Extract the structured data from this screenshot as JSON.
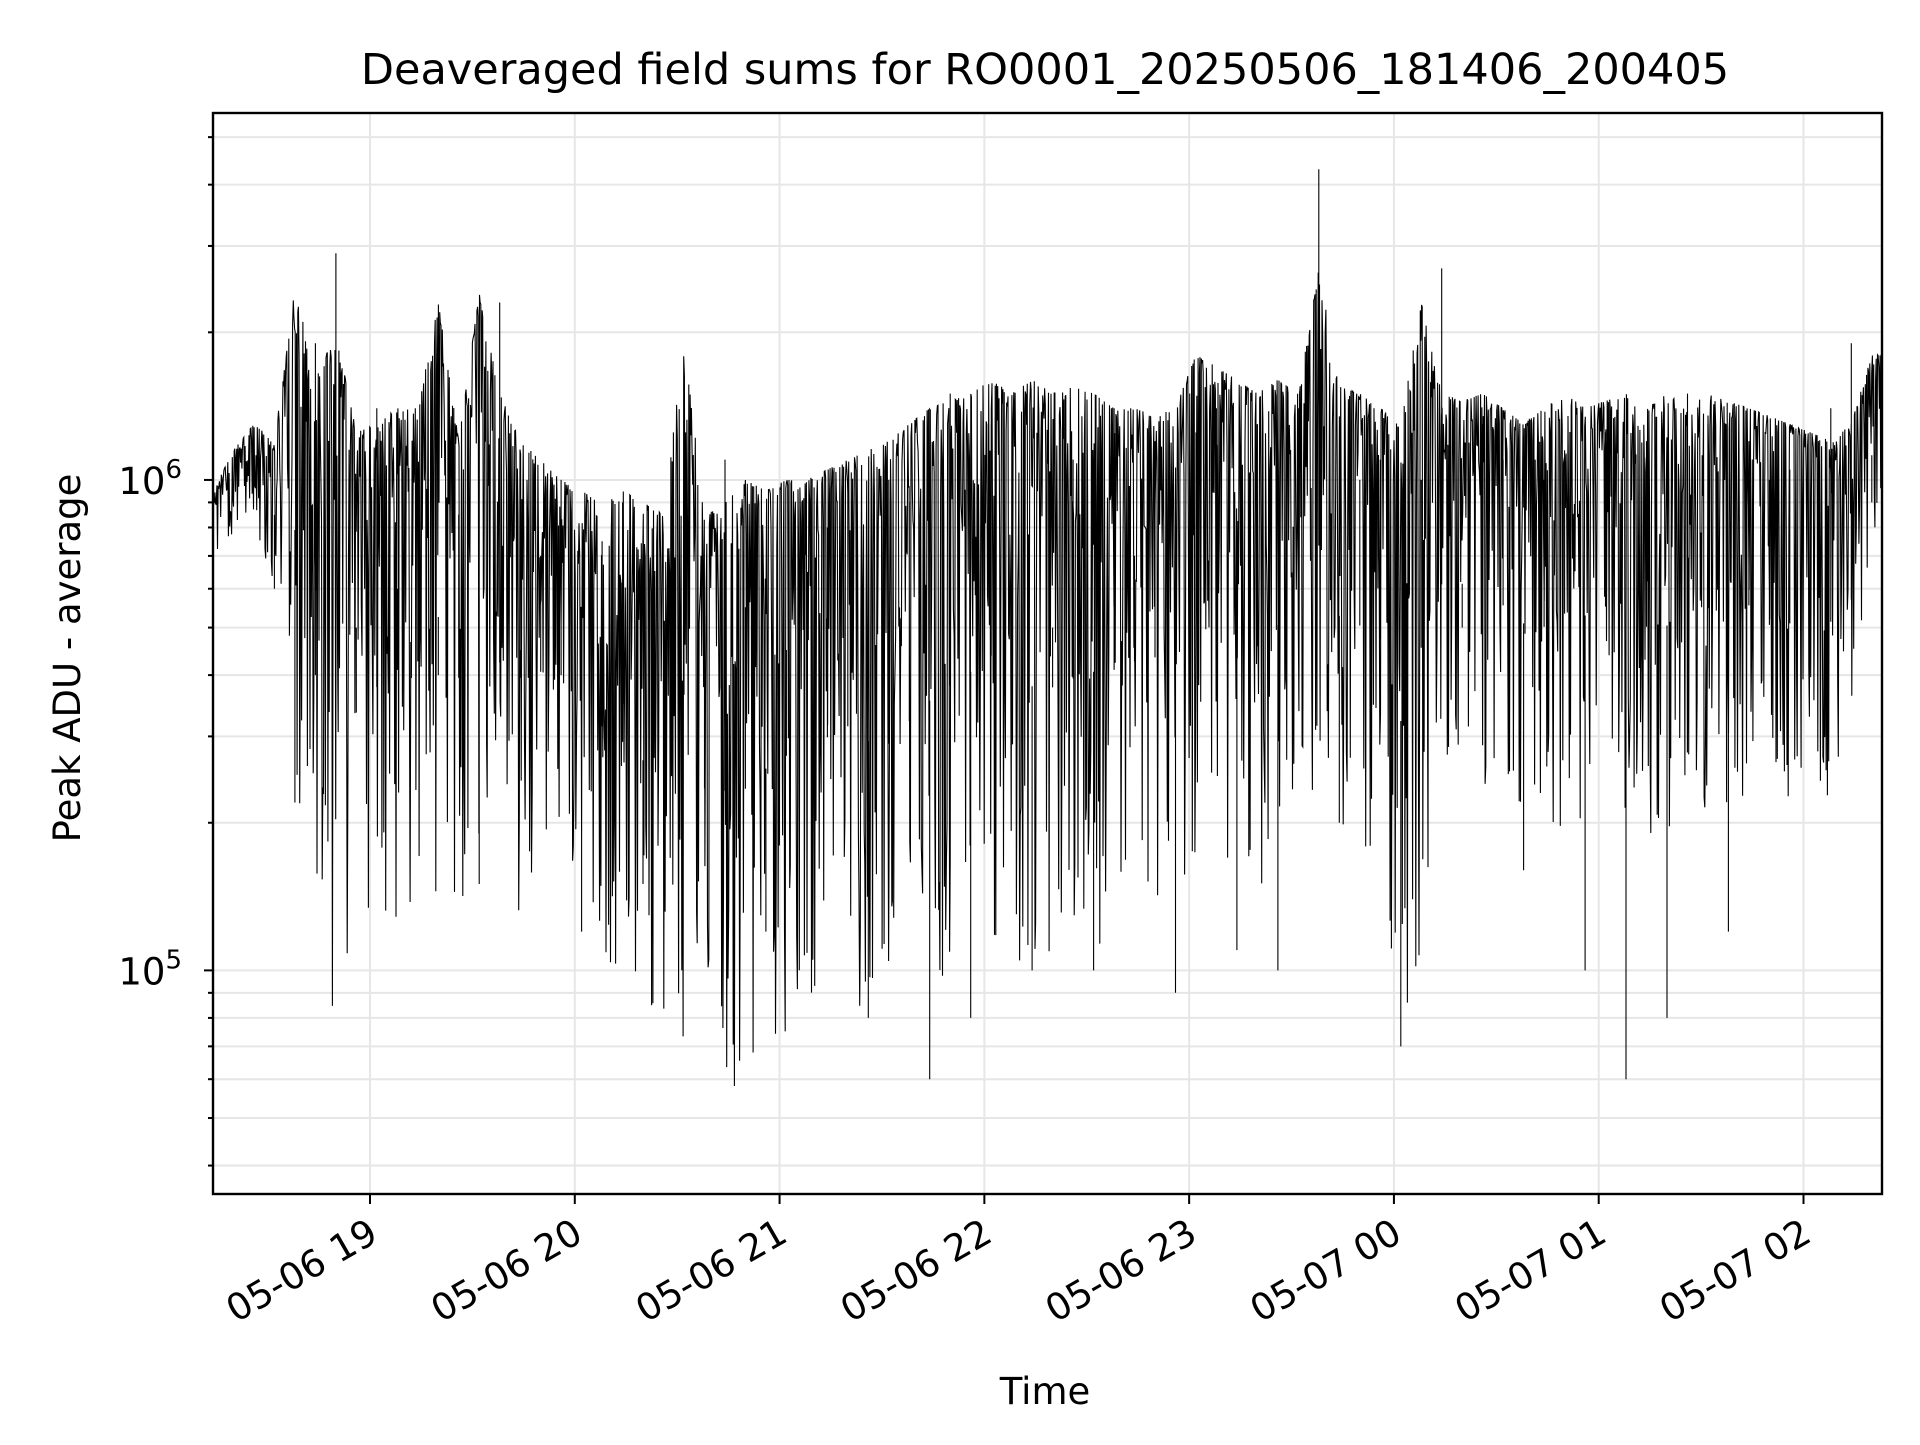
{
  "chart_data": {
    "type": "line",
    "title": "Deaveraged field sums for RO0001_20250506_181406_200405",
    "xlabel": "Time",
    "ylabel": "Peak ADU - average",
    "yscale": "log",
    "ylim": [
      35000,
      5600000
    ],
    "xlim": [
      "2025-05-06 18:14",
      "2025-05-07 02:23"
    ],
    "grid": true,
    "x_ticks": [
      {
        "label": "05-06 19",
        "time": "2025-05-06 19:00"
      },
      {
        "label": "05-06 20",
        "time": "2025-05-06 20:00"
      },
      {
        "label": "05-06 21",
        "time": "2025-05-06 21:00"
      },
      {
        "label": "05-06 22",
        "time": "2025-05-06 22:00"
      },
      {
        "label": "05-06 23",
        "time": "2025-05-06 23:00"
      },
      {
        "label": "05-07 00",
        "time": "2025-05-07 00:00"
      },
      {
        "label": "05-07 01",
        "time": "2025-05-07 01:00"
      },
      {
        "label": "05-07 02",
        "time": "2025-05-07 02:00"
      }
    ],
    "y_ticks": [
      {
        "base": "10",
        "exp": "5",
        "value": 100000
      },
      {
        "base": "10",
        "exp": "6",
        "value": 1000000
      }
    ],
    "series": [
      {
        "color": "#000000",
        "time": [
          "2025-05-06 18:14",
          "2025-05-06 18:20",
          "2025-05-06 18:26",
          "2025-05-06 18:32",
          "2025-05-06 18:38",
          "2025-05-06 18:44",
          "2025-05-06 18:50",
          "2025-05-06 18:56",
          "2025-05-06 19:02",
          "2025-05-06 19:08",
          "2025-05-06 19:14",
          "2025-05-06 19:20",
          "2025-05-06 19:26",
          "2025-05-06 19:32",
          "2025-05-06 19:38",
          "2025-05-06 19:44",
          "2025-05-06 19:50",
          "2025-05-06 19:56",
          "2025-05-06 20:02",
          "2025-05-06 20:08",
          "2025-05-06 20:14",
          "2025-05-06 20:20",
          "2025-05-06 20:26",
          "2025-05-06 20:32",
          "2025-05-06 20:38",
          "2025-05-06 20:44",
          "2025-05-06 20:50",
          "2025-05-06 20:56",
          "2025-05-06 21:02",
          "2025-05-06 21:08",
          "2025-05-06 21:14",
          "2025-05-06 21:20",
          "2025-05-06 21:26",
          "2025-05-06 21:32",
          "2025-05-06 21:38",
          "2025-05-06 21:44",
          "2025-05-06 21:50",
          "2025-05-06 21:56",
          "2025-05-06 22:02",
          "2025-05-06 22:08",
          "2025-05-06 22:14",
          "2025-05-06 22:20",
          "2025-05-06 22:26",
          "2025-05-06 22:32",
          "2025-05-06 22:38",
          "2025-05-06 22:44",
          "2025-05-06 22:50",
          "2025-05-06 22:56",
          "2025-05-06 23:02",
          "2025-05-06 23:08",
          "2025-05-06 23:14",
          "2025-05-06 23:20",
          "2025-05-06 23:26",
          "2025-05-06 23:32",
          "2025-05-06 23:38",
          "2025-05-06 23:44",
          "2025-05-06 23:50",
          "2025-05-06 23:56",
          "2025-05-07 00:02",
          "2025-05-07 00:08",
          "2025-05-07 00:14",
          "2025-05-07 00:20",
          "2025-05-07 00:26",
          "2025-05-07 00:32",
          "2025-05-07 00:38",
          "2025-05-07 00:44",
          "2025-05-07 00:50",
          "2025-05-07 00:56",
          "2025-05-07 01:02",
          "2025-05-07 01:08",
          "2025-05-07 01:14",
          "2025-05-07 01:20",
          "2025-05-07 01:26",
          "2025-05-07 01:32",
          "2025-05-07 01:38",
          "2025-05-07 01:44",
          "2025-05-07 01:50",
          "2025-05-07 01:56",
          "2025-05-07 02:02",
          "2025-05-07 02:08",
          "2025-05-07 02:14",
          "2025-05-07 02:20"
        ],
        "values": [
          750000,
          900000,
          1100000,
          600000,
          220000,
          1900000,
          2900000,
          500000,
          1400000,
          600000,
          1000000,
          400000,
          850000,
          150000,
          2300000,
          450000,
          700000,
          1000000,
          120000,
          750000,
          900000,
          150000,
          500000,
          900000,
          450000,
          1100000,
          550000,
          120000,
          450000,
          250000,
          800000,
          1000000,
          80000,
          1000000,
          900000,
          60000,
          1500000,
          80000,
          1300000,
          700000,
          100000,
          500000,
          1100000,
          100000,
          1400000,
          700000,
          1200000,
          90000,
          1250000,
          1400000,
          110000,
          1300000,
          100000,
          1400000,
          4300000,
          200000,
          1000000,
          1100000,
          70000,
          1000000,
          2700000,
          500000,
          1300000,
          1100000,
          160000,
          1000000,
          1150000,
          100000,
          1250000,
          60000,
          1200000,
          80000,
          1500000,
          1300000,
          120000,
          1200000,
          1000000,
          1050000,
          500000,
          1400000,
          1900000,
          900000
        ],
        "envelope_upper": [
          950000,
          1150000,
          1300000,
          1200000,
          2500000,
          1600000,
          2000000,
          1250000,
          1300000,
          1400000,
          1400000,
          2300000,
          1200000,
          2400000,
          1500000,
          1200000,
          1100000,
          1000000,
          950000,
          900000,
          950000,
          900000,
          850000,
          1900000,
          850000,
          900000,
          1000000,
          950000,
          1000000,
          1000000,
          1050000,
          1100000,
          1150000,
          1200000,
          1300000,
          1400000,
          1450000,
          1500000,
          1600000,
          1500000,
          1600000,
          1500000,
          1550000,
          1500000,
          1400000,
          1400000,
          1350000,
          1400000,
          1800000,
          1700000,
          1600000,
          1500000,
          1600000,
          1500000,
          2700000,
          1550000,
          1500000,
          1400000,
          1300000,
          2300000,
          1500000,
          1450000,
          1500000,
          1400000,
          1300000,
          1400000,
          1500000,
          1400000,
          1450000,
          1500000,
          1400000,
          1500000,
          1400000,
          1500000,
          1450000,
          1400000,
          1350000,
          1300000,
          1250000,
          1200000,
          1300000,
          1800000
        ],
        "envelope_lower": [
          700000,
          750000,
          800000,
          600000,
          250000,
          100000,
          80000,
          90000,
          110000,
          120000,
          130000,
          120000,
          130000,
          140000,
          120000,
          130000,
          150000,
          160000,
          140000,
          110000,
          90000,
          80000,
          75000,
          70000,
          65000,
          60000,
          55000,
          70000,
          75000,
          80000,
          85000,
          90000,
          75000,
          70000,
          80000,
          90000,
          100000,
          110000,
          120000,
          100000,
          90000,
          95000,
          100000,
          110000,
          120000,
          130000,
          140000,
          150000,
          160000,
          170000,
          150000,
          140000,
          160000,
          150000,
          200000,
          180000,
          170000,
          160000,
          80000,
          90000,
          250000,
          260000,
          240000,
          220000,
          200000,
          180000,
          190000,
          200000,
          210000,
          190000,
          180000,
          170000,
          190000,
          200000,
          210000,
          220000,
          190000,
          200000,
          210000,
          220000,
          250000,
          700000
        ]
      }
    ]
  }
}
